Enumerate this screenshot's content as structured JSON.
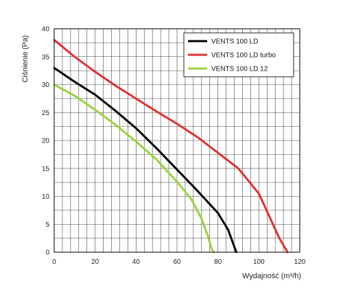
{
  "chart_data": {
    "type": "line",
    "title": "",
    "xlabel": "Wydajność (m³/h)",
    "ylabel": "Ciśnienie (Pa)",
    "xlim": [
      0,
      120
    ],
    "ylim": [
      0,
      40
    ],
    "x_ticks": [
      "0",
      "20",
      "40",
      "60",
      "80",
      "100",
      "120"
    ],
    "y_ticks": [
      "0",
      "5",
      "10",
      "15",
      "20",
      "25",
      "30",
      "35",
      "40"
    ],
    "grid": true,
    "legend_position": "top-right",
    "series": [
      {
        "name": "VENTS 100 LD",
        "color": "#000000",
        "points": [
          [
            0,
            33
          ],
          [
            10,
            30.5
          ],
          [
            20,
            28.2
          ],
          [
            30,
            25.3
          ],
          [
            40,
            22.2
          ],
          [
            50,
            18.6
          ],
          [
            60,
            14.8
          ],
          [
            70,
            11
          ],
          [
            80,
            7
          ],
          [
            85,
            4
          ],
          [
            88,
            1
          ],
          [
            89,
            0
          ]
        ]
      },
      {
        "name": "VENTS 100 LD turbo",
        "color": "#e03030",
        "points": [
          [
            0,
            38
          ],
          [
            10,
            35
          ],
          [
            20,
            32.3
          ],
          [
            30,
            29.8
          ],
          [
            40,
            27.5
          ],
          [
            50,
            25.2
          ],
          [
            60,
            23
          ],
          [
            70,
            20.6
          ],
          [
            80,
            17.8
          ],
          [
            90,
            15
          ],
          [
            100,
            10.5
          ],
          [
            105,
            6.5
          ],
          [
            110,
            2.5
          ],
          [
            114,
            0
          ]
        ]
      },
      {
        "name": "VENTS 100 LD  12",
        "color": "#9ad23c",
        "points": [
          [
            0,
            30
          ],
          [
            10,
            28
          ],
          [
            20,
            25.5
          ],
          [
            30,
            22.8
          ],
          [
            40,
            19.8
          ],
          [
            50,
            16.6
          ],
          [
            60,
            12.6
          ],
          [
            67,
            9.5
          ],
          [
            72,
            6
          ],
          [
            75,
            3
          ],
          [
            77,
            0.5
          ],
          [
            78,
            0
          ]
        ]
      }
    ]
  }
}
